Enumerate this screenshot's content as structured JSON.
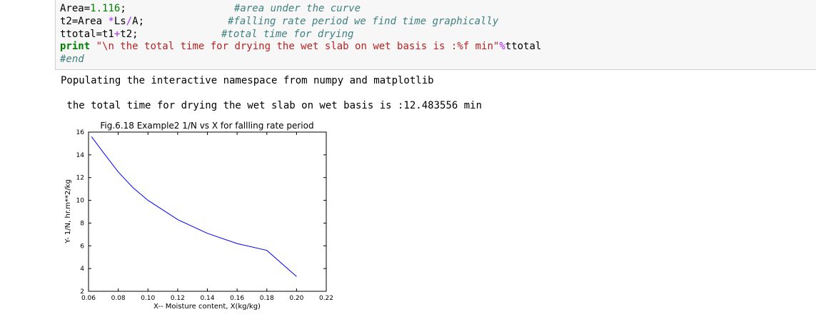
{
  "code": {
    "l1": {
      "a": "Area=",
      "b": "1.116",
      "c": ";",
      "comment": "#area under the curve"
    },
    "l2": {
      "a": "t2=Area ",
      "b": "*",
      "c": "Ls",
      "d": "/",
      "e": "A;",
      "comment": "#falling rate period we find time graphically"
    },
    "l3": {
      "a": "ttotal=t1",
      "b": "+",
      "c": "t2;",
      "comment": "#total time for drying"
    },
    "l4": {
      "kw": "print",
      "sp": " ",
      "str": "\"\\n the total time for drying the wet slab on wet basis is :%f min\"",
      "op": "%",
      "rest": "ttotal"
    },
    "l5": {
      "comment": "#end"
    }
  },
  "output": {
    "line1": "Populating the interactive namespace from numpy and matplotlib",
    "line2": " the total time for drying the wet slab on wet basis is :12.483556 min"
  },
  "chart_data": {
    "type": "line",
    "title": "Fig.6.18 Example2 1/N vs X for fallling rate period",
    "xlabel": "X-- Moisture content, X(kg/kg)",
    "ylabel": "Y- 1/N, hr.m**2/kg",
    "xlim": [
      0.06,
      0.22
    ],
    "ylim": [
      2,
      16
    ],
    "xticks": [
      "0.06",
      "0.08",
      "0.10",
      "0.12",
      "0.14",
      "0.16",
      "0.18",
      "0.20",
      "0.22"
    ],
    "yticks": [
      "2",
      "4",
      "6",
      "8",
      "10",
      "12",
      "14",
      "16"
    ],
    "grid": false,
    "color": "#0000ff",
    "series": [
      {
        "x": [
          0.062,
          0.07,
          0.08,
          0.09,
          0.1,
          0.12,
          0.14,
          0.16,
          0.18,
          0.2
        ],
        "y": [
          15.6,
          14.2,
          12.5,
          11.1,
          10.0,
          8.3,
          7.1,
          6.2,
          5.6,
          3.3
        ]
      }
    ]
  }
}
